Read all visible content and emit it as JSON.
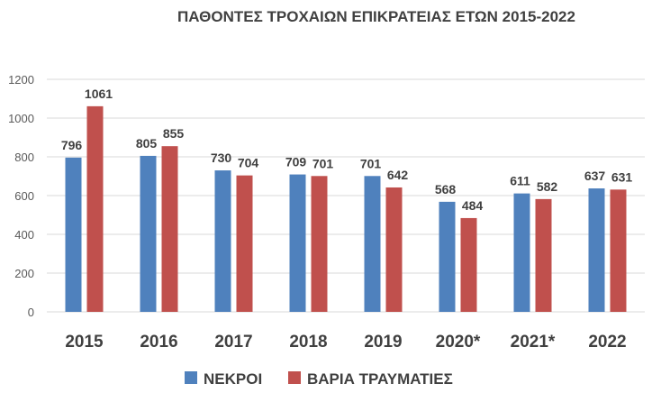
{
  "chart_data": {
    "type": "bar",
    "title": "ΠΑΘΟΝΤΕΣ ΤΡΟΧΑΙΩΝ ΕΠΙΚΡΑΤΕΙΑΣ ΕΤΩΝ 2015-2022",
    "xlabel": "",
    "ylabel": "",
    "categories": [
      "2015",
      "2016",
      "2017",
      "2018",
      "2019",
      "2020*",
      "2021*",
      "2022"
    ],
    "series": [
      {
        "name": "ΝΕΚΡΟΙ",
        "color": "#4f81bd",
        "values": [
          796,
          805,
          730,
          709,
          701,
          568,
          611,
          637
        ]
      },
      {
        "name": "ΒΑΡΙΑ ΤΡΑΥΜΑΤΙΕΣ",
        "color": "#c0504d",
        "values": [
          1061,
          855,
          704,
          701,
          642,
          484,
          582,
          631
        ]
      }
    ],
    "ylim": [
      0,
      1200
    ],
    "yticks": [
      "0",
      "200",
      "400",
      "600",
      "800",
      "1000",
      "1200"
    ],
    "grid": true,
    "legend_position": "bottom"
  }
}
